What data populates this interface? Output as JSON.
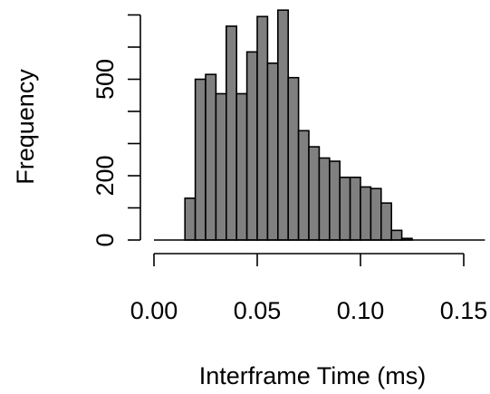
{
  "chart_data": {
    "type": "bar",
    "title": "",
    "xlabel": "Interframe Time (ms)",
    "ylabel": "Frequency",
    "bin_width": 0.005,
    "bin_start": 0,
    "xlim": [
      0,
      0.155
    ],
    "ylim": [
      0,
      720
    ],
    "x_ticks": [
      {
        "value": 0.0,
        "label": "0.00"
      },
      {
        "value": 0.05,
        "label": "0.05"
      },
      {
        "value": 0.1,
        "label": "0.10"
      },
      {
        "value": 0.15,
        "label": "0.15"
      }
    ],
    "y_ticks": [
      {
        "value": 0,
        "label": "0",
        "labeled": true
      },
      {
        "value": 100,
        "label": "",
        "labeled": false
      },
      {
        "value": 200,
        "label": "200",
        "labeled": true
      },
      {
        "value": 300,
        "label": "",
        "labeled": false
      },
      {
        "value": 400,
        "label": "",
        "labeled": false
      },
      {
        "value": 500,
        "label": "500",
        "labeled": true
      },
      {
        "value": 600,
        "label": "",
        "labeled": false
      },
      {
        "value": 700,
        "label": "",
        "labeled": false
      }
    ],
    "values": [
      0,
      0,
      0,
      130,
      500,
      515,
      455,
      665,
      455,
      585,
      695,
      550,
      715,
      505,
      340,
      290,
      255,
      245,
      195,
      195,
      165,
      160,
      115,
      30,
      5,
      0,
      0,
      0,
      0,
      0,
      0
    ],
    "grid": false,
    "legend": "none",
    "bar_color": "#808080"
  }
}
